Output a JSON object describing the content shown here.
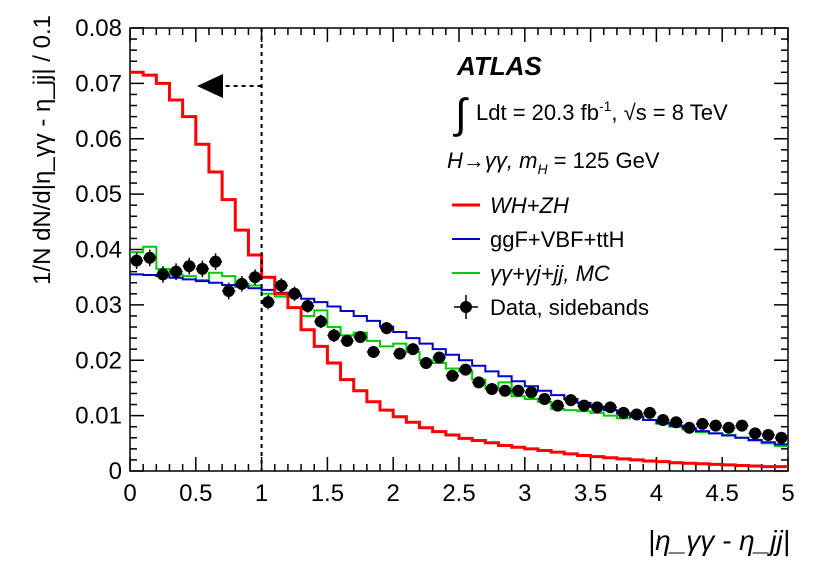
{
  "chart_data": {
    "type": "step-histogram with points",
    "xlabel": "|η_γγ - η_jj|",
    "ylabel": "1/N dN/d|η_γγ - η_jj| / 0.1",
    "xlim": [
      0,
      5
    ],
    "ylim": [
      0,
      0.08
    ],
    "bin_width": 0.1,
    "x_ticks": [
      "0",
      "0.5",
      "1",
      "1.5",
      "2",
      "2.5",
      "3",
      "3.5",
      "4",
      "4.5",
      "5"
    ],
    "y_ticks": [
      "0",
      "0.01",
      "0.02",
      "0.03",
      "0.04",
      "0.05",
      "0.06",
      "0.07",
      "0.08"
    ],
    "cut_line_x": 1.0,
    "annotations": {
      "experiment": "ATLAS",
      "lumi_integral": "∫",
      "lumi_text": "Ldt = 20.3 fb",
      "lumi_exp": "-1",
      "energy_text": ", √s = 8 TeV",
      "process": "H→γγ, m",
      "process_sub": "H",
      "process_mass": " = 125 GeV"
    },
    "series": [
      {
        "name": "WH+ZH",
        "style": "step",
        "color": "#ff0000",
        "values": [
          0.072,
          0.0715,
          0.07,
          0.067,
          0.064,
          0.059,
          0.054,
          0.049,
          0.0435,
          0.039,
          0.035,
          0.032,
          0.0295,
          0.0255,
          0.0225,
          0.0195,
          0.0165,
          0.0145,
          0.0125,
          0.011,
          0.0098,
          0.0088,
          0.0078,
          0.0071,
          0.0065,
          0.0059,
          0.0055,
          0.0051,
          0.0046,
          0.0043,
          0.004,
          0.0037,
          0.0034,
          0.0031,
          0.0028,
          0.0026,
          0.0024,
          0.0022,
          0.002,
          0.0018,
          0.0017,
          0.0015,
          0.0014,
          0.0013,
          0.0012,
          0.0011,
          0.001,
          0.0009,
          0.0008,
          0.0008
        ]
      },
      {
        "name": "ggF+VBF+ttH",
        "style": "step",
        "color": "#0000cc",
        "values": [
          0.0355,
          0.0354,
          0.0352,
          0.0349,
          0.0346,
          0.0343,
          0.034,
          0.0336,
          0.0333,
          0.033,
          0.0327,
          0.0322,
          0.0317,
          0.0311,
          0.0305,
          0.0297,
          0.0289,
          0.028,
          0.0271,
          0.0261,
          0.0251,
          0.024,
          0.023,
          0.022,
          0.021,
          0.02,
          0.019,
          0.018,
          0.0171,
          0.0162,
          0.0153,
          0.0145,
          0.0137,
          0.013,
          0.0123,
          0.0116,
          0.011,
          0.0104,
          0.0098,
          0.0092,
          0.0087,
          0.0082,
          0.0077,
          0.0072,
          0.0068,
          0.0064,
          0.006,
          0.0056,
          0.0052,
          0.0048
        ]
      },
      {
        "name": "γγ+γj+jj, MC",
        "style": "step",
        "color": "#00cc00",
        "values": [
          0.0395,
          0.0405,
          0.0365,
          0.0355,
          0.0352,
          0.0345,
          0.0358,
          0.0352,
          0.0338,
          0.0335,
          0.032,
          0.0315,
          0.0295,
          0.028,
          0.029,
          0.026,
          0.0245,
          0.025,
          0.0235,
          0.0225,
          0.023,
          0.0215,
          0.02,
          0.0195,
          0.0185,
          0.018,
          0.0165,
          0.015,
          0.016,
          0.0135,
          0.013,
          0.0125,
          0.0112,
          0.011,
          0.0108,
          0.0105,
          0.01,
          0.0095,
          0.0098,
          0.0092,
          0.0085,
          0.008,
          0.0075,
          0.007,
          0.0068,
          0.0065,
          0.006,
          0.0055,
          0.005,
          0.0045
        ]
      },
      {
        "name": "Data, sidebands",
        "style": "points",
        "color": "#000000",
        "values": [
          0.038,
          0.0385,
          0.0355,
          0.036,
          0.037,
          0.0365,
          0.0378,
          0.0325,
          0.0338,
          0.035,
          0.0305,
          0.0335,
          0.032,
          0.0298,
          0.027,
          0.0245,
          0.0235,
          0.0242,
          0.0215,
          0.0258,
          0.0212,
          0.022,
          0.0195,
          0.0205,
          0.0172,
          0.0183,
          0.016,
          0.0148,
          0.0145,
          0.0145,
          0.0142,
          0.013,
          0.0118,
          0.0128,
          0.0118,
          0.0115,
          0.0115,
          0.0105,
          0.0102,
          0.0105,
          0.0092,
          0.0088,
          0.0078,
          0.0085,
          0.0082,
          0.0078,
          0.0082,
          0.0068,
          0.0065,
          0.006
        ],
        "errors": [
          0.0015,
          0.0015,
          0.0015,
          0.0015,
          0.0015,
          0.0015,
          0.0015,
          0.0015,
          0.0014,
          0.0014,
          0.0013,
          0.0013,
          0.0013,
          0.0012,
          0.0012,
          0.0012,
          0.0011,
          0.0011,
          0.0011,
          0.0011,
          0.001,
          0.001,
          0.001,
          0.001,
          0.0009,
          0.0009,
          0.0009,
          0.0009,
          0.0008,
          0.0008,
          0.0008,
          0.0008,
          0.0008,
          0.0007,
          0.0007,
          0.0007,
          0.0007,
          0.0007,
          0.0006,
          0.0006,
          0.0006,
          0.0006,
          0.0006,
          0.0006,
          0.0006,
          0.0005,
          0.0005,
          0.0005,
          0.0005,
          0.0005
        ]
      }
    ],
    "legend": [
      {
        "label": "WH+ZH",
        "color": "#ff0000",
        "kind": "line"
      },
      {
        "label": "ggF+VBF+ttH",
        "color": "#0000cc",
        "kind": "line"
      },
      {
        "label": "γγ+γj+jj, MC",
        "color": "#00cc00",
        "kind": "line"
      },
      {
        "label": "Data, sidebands",
        "color": "#000000",
        "kind": "point"
      }
    ]
  }
}
